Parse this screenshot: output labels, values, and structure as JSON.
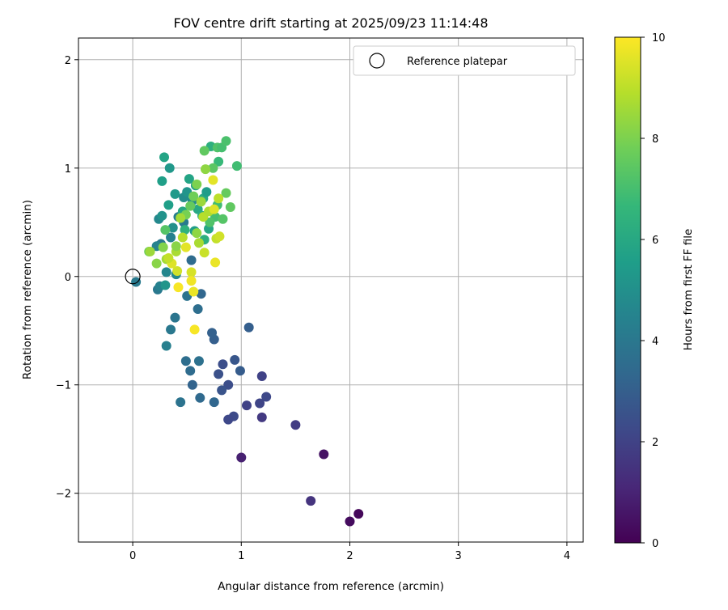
{
  "chart_data": {
    "type": "scatter",
    "title": "FOV centre drift starting at 2025/09/23 11:14:48",
    "xlabel": "Angular distance from reference (arcmin)",
    "ylabel": "Rotation from reference (arcmin)",
    "xlim": [
      -0.5,
      4.15
    ],
    "ylim": [
      -2.45,
      2.2
    ],
    "xticks": [
      0,
      1,
      2,
      3,
      4
    ],
    "yticks": [
      -2,
      -1,
      0,
      1,
      2
    ],
    "xtick_labels": [
      "0",
      "1",
      "2",
      "3",
      "4"
    ],
    "ytick_labels": [
      "−2",
      "−1",
      "0",
      "1",
      "2"
    ],
    "grid": true,
    "legend": {
      "placement": "top-right",
      "label": "Reference platepar"
    },
    "colorbar": {
      "label": "Hours from first FF file",
      "range": [
        0,
        10
      ],
      "ticks": [
        0,
        2,
        4,
        6,
        8,
        10
      ],
      "tick_labels": [
        "0",
        "2",
        "4",
        "6",
        "8",
        "10"
      ],
      "colormap": "viridis"
    },
    "colormap_stops": [
      "#440154",
      "#482878",
      "#3e4989",
      "#31688e",
      "#26828e",
      "#1f9e89",
      "#35b779",
      "#6ece58",
      "#b5de2b",
      "#fde725"
    ],
    "reference": {
      "x": 0,
      "y": 0
    },
    "series": [
      {
        "name": "FOV centre",
        "points": [
          [
            2.08,
            -2.19,
            0.2
          ],
          [
            2.0,
            -2.26,
            0.3
          ],
          [
            1.76,
            -1.64,
            0.5
          ],
          [
            1.0,
            -1.67,
            0.9
          ],
          [
            1.64,
            -2.07,
            1.5
          ],
          [
            1.5,
            -1.37,
            1.8
          ],
          [
            1.19,
            -1.3,
            1.7
          ],
          [
            1.19,
            -0.92,
            2.0
          ],
          [
            1.23,
            -1.11,
            2.2
          ],
          [
            1.17,
            -1.17,
            2.1
          ],
          [
            1.05,
            -1.19,
            2.0
          ],
          [
            0.93,
            -1.29,
            2.3
          ],
          [
            0.88,
            -1.32,
            2.2
          ],
          [
            0.88,
            -1.0,
            2.4
          ],
          [
            0.82,
            -1.05,
            2.6
          ],
          [
            0.79,
            -0.9,
            2.5
          ],
          [
            0.83,
            -0.81,
            2.4
          ],
          [
            0.94,
            -0.77,
            2.7
          ],
          [
            0.99,
            -0.87,
            2.9
          ],
          [
            1.07,
            -0.47,
            3.0
          ],
          [
            0.75,
            -0.58,
            3.0
          ],
          [
            0.73,
            -0.52,
            3.1
          ],
          [
            0.75,
            -1.16,
            3.3
          ],
          [
            0.62,
            -1.12,
            3.4
          ],
          [
            0.55,
            -1.0,
            3.2
          ],
          [
            0.53,
            -0.87,
            3.5
          ],
          [
            0.49,
            -0.78,
            3.6
          ],
          [
            0.61,
            -0.78,
            3.7
          ],
          [
            0.44,
            -1.16,
            3.8
          ],
          [
            0.39,
            -0.38,
            3.9
          ],
          [
            0.35,
            -0.49,
            4.0
          ],
          [
            0.31,
            -0.64,
            4.3
          ],
          [
            0.6,
            -0.3,
            3.6
          ],
          [
            0.5,
            -0.18,
            3.8
          ],
          [
            0.63,
            -0.16,
            3.3
          ],
          [
            0.03,
            -0.05,
            4.1
          ],
          [
            0.23,
            -0.12,
            4.0
          ],
          [
            0.25,
            -0.09,
            4.4
          ],
          [
            0.3,
            -0.08,
            5.2
          ],
          [
            0.31,
            0.04,
            4.6
          ],
          [
            0.4,
            0.02,
            4.7
          ],
          [
            0.54,
            0.15,
            3.5
          ],
          [
            0.26,
            0.3,
            4.0
          ],
          [
            0.22,
            0.28,
            4.5
          ],
          [
            0.35,
            0.36,
            4.4
          ],
          [
            0.37,
            0.45,
            5.0
          ],
          [
            0.47,
            0.5,
            4.1
          ],
          [
            0.24,
            0.53,
            4.7
          ],
          [
            0.27,
            0.56,
            5.1
          ],
          [
            0.42,
            0.55,
            4.2
          ],
          [
            0.33,
            0.66,
            5.6
          ],
          [
            0.39,
            0.76,
            5.4
          ],
          [
            0.47,
            0.73,
            4.9
          ],
          [
            0.27,
            0.88,
            5.6
          ],
          [
            0.34,
            1.0,
            5.3
          ],
          [
            0.29,
            1.1,
            5.8
          ],
          [
            0.5,
            0.78,
            5.2
          ],
          [
            0.55,
            0.7,
            4.8
          ],
          [
            0.58,
            0.84,
            5.7
          ],
          [
            0.52,
            0.9,
            5.8
          ],
          [
            0.6,
            0.62,
            6.0
          ],
          [
            0.64,
            0.56,
            6.2
          ],
          [
            0.65,
            0.72,
            6.1
          ],
          [
            0.68,
            0.78,
            5.5
          ],
          [
            0.7,
            0.44,
            5.9
          ],
          [
            0.66,
            0.34,
            6.3
          ],
          [
            0.57,
            0.42,
            5.5
          ],
          [
            0.48,
            0.43,
            6.4
          ],
          [
            0.46,
            0.6,
            5.9
          ],
          [
            0.72,
            1.2,
            6.3
          ],
          [
            0.79,
            1.06,
            6.7
          ],
          [
            0.78,
            1.19,
            7.2
          ],
          [
            0.82,
            1.19,
            7.0
          ],
          [
            0.86,
            1.25,
            7.1
          ],
          [
            0.66,
            1.16,
            7.5
          ],
          [
            0.96,
            1.02,
            6.9
          ],
          [
            0.74,
            1.0,
            7.4
          ],
          [
            0.78,
            0.66,
            6.9
          ],
          [
            0.76,
            0.55,
            7.0
          ],
          [
            0.83,
            0.53,
            7.3
          ],
          [
            0.71,
            0.5,
            7.2
          ],
          [
            0.9,
            0.64,
            7.5
          ],
          [
            0.86,
            0.77,
            7.6
          ],
          [
            0.67,
            0.99,
            8.3
          ],
          [
            0.56,
            0.74,
            7.8
          ],
          [
            0.59,
            0.85,
            8.0
          ],
          [
            0.53,
            0.65,
            7.6
          ],
          [
            0.49,
            0.57,
            7.9
          ],
          [
            0.3,
            0.43,
            7.3
          ],
          [
            0.15,
            0.23,
            7.7
          ],
          [
            0.22,
            0.12,
            8.2
          ],
          [
            0.16,
            0.23,
            8.5
          ],
          [
            0.28,
            0.27,
            8.1
          ],
          [
            0.31,
            0.16,
            8.6
          ],
          [
            0.4,
            0.23,
            8.7
          ],
          [
            0.4,
            0.28,
            8.2
          ],
          [
            0.44,
            0.54,
            8.6
          ],
          [
            0.46,
            0.36,
            8.9
          ],
          [
            0.59,
            0.4,
            8.3
          ],
          [
            0.61,
            0.31,
            8.7
          ],
          [
            0.65,
            0.55,
            8.9
          ],
          [
            0.63,
            0.69,
            8.5
          ],
          [
            0.7,
            0.6,
            8.8
          ],
          [
            0.77,
            0.35,
            9.1
          ],
          [
            0.8,
            0.37,
            9.3
          ],
          [
            0.75,
            0.62,
            9.5
          ],
          [
            0.79,
            0.72,
            9.0
          ],
          [
            0.74,
            0.89,
            9.6
          ],
          [
            0.66,
            0.22,
            9.2
          ],
          [
            0.76,
            0.13,
            9.7
          ],
          [
            0.54,
            0.04,
            9.4
          ],
          [
            0.54,
            -0.04,
            9.8
          ],
          [
            0.56,
            -0.14,
            9.7
          ],
          [
            0.42,
            -0.1,
            9.9
          ],
          [
            0.57,
            -0.49,
            9.9
          ],
          [
            0.41,
            0.05,
            9.3
          ],
          [
            0.36,
            0.12,
            9.5
          ],
          [
            0.33,
            0.17,
            9.1
          ],
          [
            0.49,
            0.27,
            9.6
          ]
        ]
      }
    ]
  }
}
